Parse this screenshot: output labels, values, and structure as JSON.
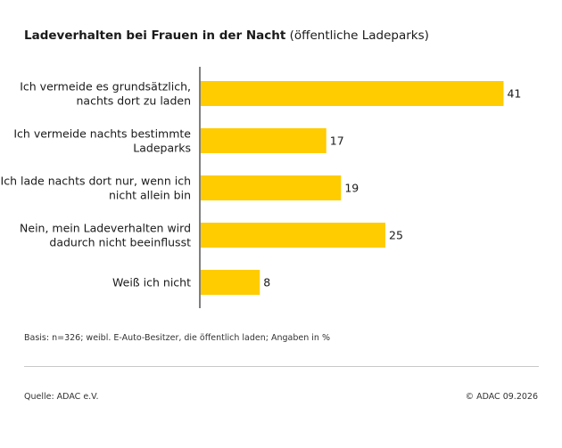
{
  "header": {
    "title_bold": "Ladeverhalten bei Frauen in der Nacht",
    "title_regular": " (öffentliche Ladeparks)"
  },
  "chart_data": {
    "type": "bar",
    "orientation": "horizontal",
    "categories": [
      [
        "Ich vermeide es grundsätzlich,",
        "nachts dort zu laden"
      ],
      [
        "Ich vermeide nachts bestimmte",
        "Ladeparks"
      ],
      [
        "Ich lade nachts dort nur, wenn ich",
        "nicht allein bin"
      ],
      [
        "Nein, mein Ladeverhalten wird",
        "dadurch nicht beeinflusst"
      ],
      [
        "Weiß ich nicht"
      ]
    ],
    "values": [
      41,
      17,
      19,
      25,
      8
    ],
    "data_labels": [
      "41",
      "17",
      "19",
      "25",
      "8"
    ],
    "bar_color": "#ffcc00",
    "axis_color": "#555555",
    "grid": false,
    "legend": "none"
  },
  "footer": {
    "note": "Basis: n=326; weibl. E-Auto-Besitzer, die öffentlich laden; Angaben in %",
    "source": "Quelle: ADAC e.V.",
    "copyright": "© ADAC 09.2026"
  }
}
